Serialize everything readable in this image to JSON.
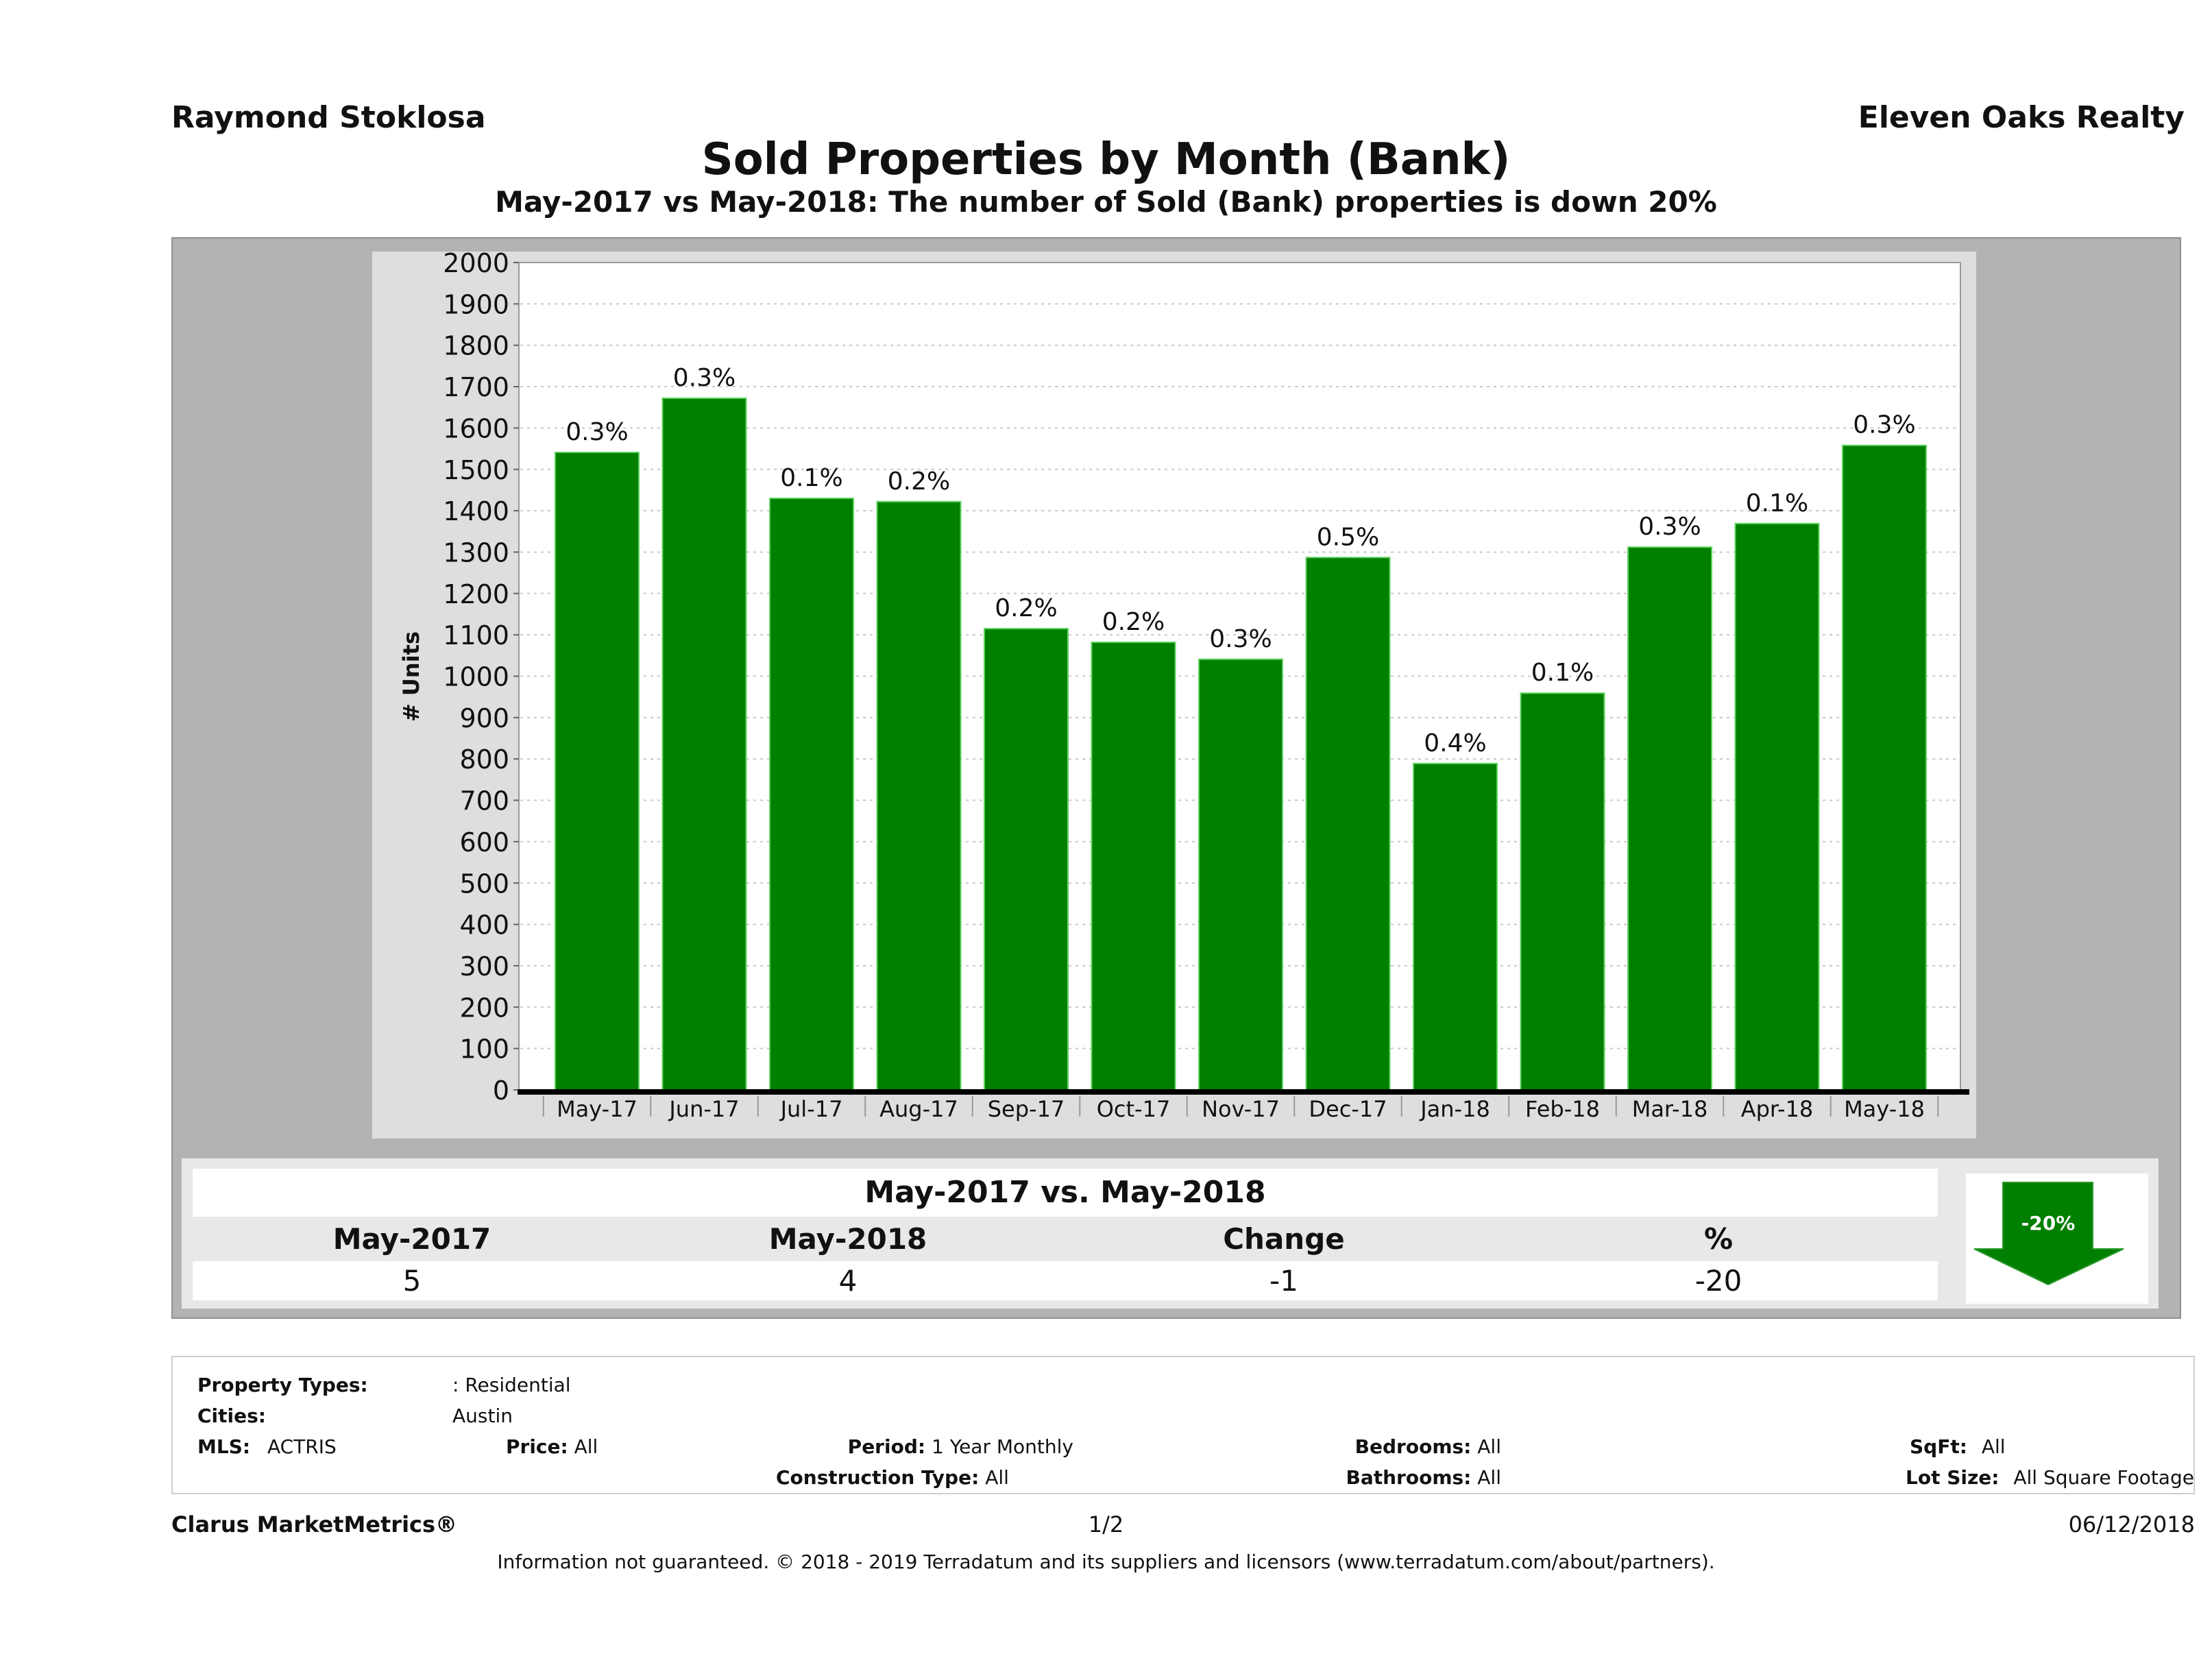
{
  "header": {
    "agent_name": "Raymond Stoklosa",
    "brokerage": "Eleven Oaks Realty"
  },
  "chart_data": {
    "type": "bar",
    "title": "Sold Properties by Month (Bank)",
    "subtitle": "May-2017 vs May-2018: The number of Sold (Bank)  properties is down 20%",
    "xlabel": "",
    "ylabel": "# Units",
    "ylim": [
      0,
      2000
    ],
    "ytick_step": 100,
    "grid": true,
    "bar_color": "#007f00",
    "categories": [
      "May-17",
      "Jun-17",
      "Jul-17",
      "Aug-17",
      "Sep-17",
      "Oct-17",
      "Nov-17",
      "Dec-17",
      "Jan-18",
      "Feb-18",
      "Mar-18",
      "Apr-18",
      "May-18"
    ],
    "values": [
      1541,
      1672,
      1430,
      1422,
      1115,
      1082,
      1041,
      1287,
      789,
      959,
      1312,
      1369,
      1558
    ],
    "data_labels": [
      "0.3%",
      "0.3%",
      "0.1%",
      "0.2%",
      "0.2%",
      "0.2%",
      "0.3%",
      "0.5%",
      "0.4%",
      "0.1%",
      "0.3%",
      "0.1%",
      "0.3%"
    ]
  },
  "summary": {
    "title": "May-2017 vs. May-2018",
    "headers": [
      "May-2017",
      "May-2018",
      "Change",
      "%"
    ],
    "values": [
      "5",
      "4",
      "-1",
      "-20"
    ],
    "badge_label": "-20%",
    "badge_icon": "down-arrow-icon",
    "badge_color": "#007f00"
  },
  "details": {
    "property_types_label": "Property Types:",
    "property_types_value": ": Residential",
    "cities_label": "Cities:",
    "cities_value": "Austin",
    "mls_label": "MLS:",
    "mls_value": "ACTRIS",
    "price_label": "Price:",
    "price_value": "All",
    "period_label": "Period:",
    "period_value": "1 Year Monthly",
    "construction_label": "Construction Type:",
    "construction_value": "All",
    "bedrooms_label": "Bedrooms:",
    "bedrooms_value": "All",
    "bathrooms_label": "Bathrooms:",
    "bathrooms_value": "All",
    "sqft_label": "SqFt:",
    "sqft_value": "All",
    "lot_label": "Lot Size:",
    "lot_value": "All Square Footage"
  },
  "footer": {
    "product": "Clarus MarketMetrics®",
    "page": "1/2",
    "date": "06/12/2018",
    "disclaimer": "Information not guaranteed. © 2018 - 2019 Terradatum and its suppliers and licensors (www.terradatum.com/about/partners)."
  }
}
